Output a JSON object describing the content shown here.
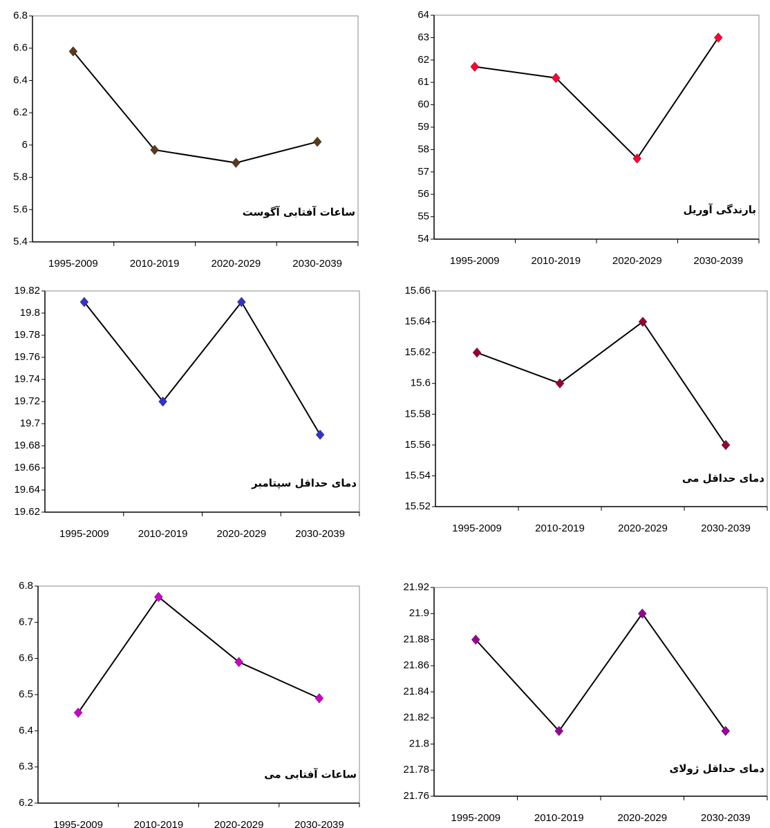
{
  "chart_data": [
    {
      "type": "line",
      "title": "ساعات آفتابی آگوست",
      "categories": [
        "1995-2009",
        "2010-2019",
        "2020-2029",
        "2030-2039"
      ],
      "series": [
        {
          "color": "#5a3a1a",
          "values": [
            6.58,
            5.97,
            5.89,
            6.02
          ]
        }
      ],
      "ylim": [
        5.4,
        6.8
      ],
      "yticks": [
        5.4,
        5.6,
        5.8,
        6,
        6.2,
        6.4,
        6.6,
        6.8
      ]
    },
    {
      "type": "line",
      "title": "بارندگی آوریل",
      "categories": [
        "1995-2009",
        "2010-2019",
        "2020-2029",
        "2030-2039"
      ],
      "series": [
        {
          "color": "#ff0033",
          "values": [
            61.7,
            61.2,
            57.6,
            63.0
          ]
        }
      ],
      "ylim": [
        54,
        64
      ],
      "yticks": [
        54,
        55,
        56,
        57,
        58,
        59,
        60,
        61,
        62,
        63,
        64
      ]
    },
    {
      "type": "line",
      "title": "دمای حداقل سپتامبر",
      "categories": [
        "1995-2009",
        "2010-2019",
        "2020-2029",
        "2030-2039"
      ],
      "series": [
        {
          "color": "#3333cc",
          "values": [
            19.81,
            19.72,
            19.81,
            19.69
          ]
        }
      ],
      "ylim": [
        19.62,
        19.82
      ],
      "yticks": [
        19.62,
        19.64,
        19.66,
        19.68,
        19.7,
        19.72,
        19.74,
        19.76,
        19.78,
        19.8,
        19.82
      ]
    },
    {
      "type": "line",
      "title": "دمای حداقل می",
      "categories": [
        "1995-2009",
        "2010-2019",
        "2020-2029",
        "2030-2039"
      ],
      "series": [
        {
          "color": "#990033",
          "values": [
            15.62,
            15.6,
            15.64,
            15.56
          ]
        }
      ],
      "ylim": [
        15.52,
        15.66
      ],
      "yticks": [
        15.52,
        15.54,
        15.56,
        15.58,
        15.6,
        15.62,
        15.64,
        15.66
      ]
    },
    {
      "type": "line",
      "title": "ساعات آفتابی می",
      "categories": [
        "1995-2009",
        "2010-2019",
        "2020-2029",
        "2030-2039"
      ],
      "series": [
        {
          "color": "#cc00cc",
          "values": [
            6.45,
            6.77,
            6.59,
            6.49
          ]
        }
      ],
      "ylim": [
        6.2,
        6.8
      ],
      "yticks": [
        6.2,
        6.3,
        6.4,
        6.5,
        6.6,
        6.7,
        6.8
      ]
    },
    {
      "type": "line",
      "title": "دمای حداقل ژولای",
      "categories": [
        "1995-2009",
        "2010-2019",
        "2020-2029",
        "2030-2039"
      ],
      "series": [
        {
          "color": "#990099",
          "values": [
            21.88,
            21.81,
            21.9,
            21.81
          ]
        }
      ],
      "ylim": [
        21.76,
        21.92
      ],
      "yticks": [
        21.76,
        21.78,
        21.8,
        21.82,
        21.84,
        21.86,
        21.88,
        21.9,
        21.92
      ]
    }
  ]
}
